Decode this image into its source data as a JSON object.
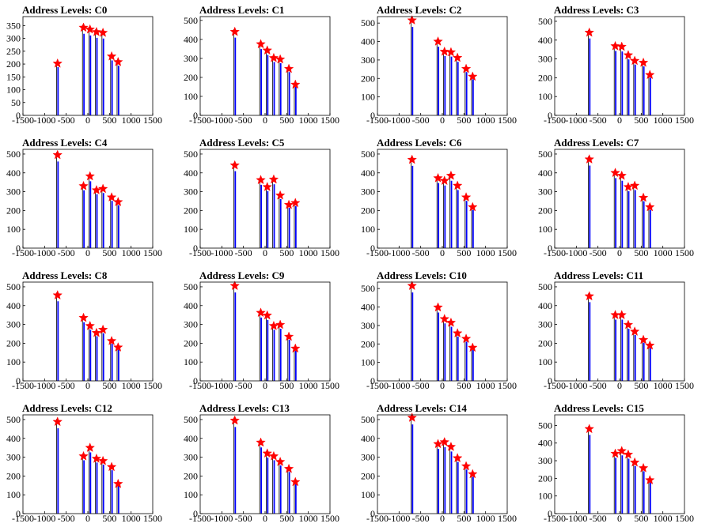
{
  "colors": {
    "histogram": "#0000ff",
    "spike": "#000000",
    "marker": "#ff0000",
    "frame": "#000000"
  },
  "chart_data": [
    {
      "type": "bar",
      "title": "Address Levels: C0",
      "xlim": [
        -1500,
        1500
      ],
      "xticks": [
        -1500,
        -1000,
        -500,
        0,
        500,
        1000,
        1500
      ],
      "ylim": [
        0,
        385
      ],
      "yticks": [
        0,
        50,
        100,
        150,
        200,
        250,
        300,
        350
      ],
      "peaks": [
        {
          "x": -700,
          "y": 202
        },
        {
          "x": -100,
          "y": 342
        },
        {
          "x": 50,
          "y": 335
        },
        {
          "x": 200,
          "y": 325
        },
        {
          "x": 350,
          "y": 322
        },
        {
          "x": 550,
          "y": 230
        },
        {
          "x": 700,
          "y": 208
        }
      ]
    },
    {
      "type": "bar",
      "title": "Address Levels: C1",
      "xlim": [
        -1500,
        1500
      ],
      "xticks": [
        -1500,
        -1000,
        -500,
        0,
        500,
        1000,
        1500
      ],
      "ylim": [
        0,
        520
      ],
      "yticks": [
        0,
        100,
        200,
        300,
        400,
        500
      ],
      "peaks": [
        {
          "x": -700,
          "y": 440
        },
        {
          "x": -100,
          "y": 375
        },
        {
          "x": 50,
          "y": 342
        },
        {
          "x": 200,
          "y": 302
        },
        {
          "x": 350,
          "y": 295
        },
        {
          "x": 550,
          "y": 245
        },
        {
          "x": 700,
          "y": 162
        }
      ]
    },
    {
      "type": "bar",
      "title": "Address Levels: C2",
      "xlim": [
        -1500,
        1500
      ],
      "xticks": [
        -1500,
        -1000,
        -500,
        0,
        500,
        1000,
        1500
      ],
      "ylim": [
        0,
        535
      ],
      "yticks": [
        0,
        100,
        200,
        300,
        400,
        500
      ],
      "peaks": [
        {
          "x": -700,
          "y": 515
        },
        {
          "x": -100,
          "y": 400
        },
        {
          "x": 50,
          "y": 345
        },
        {
          "x": 200,
          "y": 342
        },
        {
          "x": 350,
          "y": 312
        },
        {
          "x": 550,
          "y": 252
        },
        {
          "x": 700,
          "y": 210
        }
      ]
    },
    {
      "type": "bar",
      "title": "Address Levels: C3",
      "xlim": [
        -1500,
        1500
      ],
      "xticks": [
        -1500,
        -1000,
        -500,
        0,
        500,
        1000,
        1500
      ],
      "ylim": [
        0,
        525
      ],
      "yticks": [
        0,
        100,
        200,
        300,
        400,
        500
      ],
      "peaks": [
        {
          "x": -700,
          "y": 440
        },
        {
          "x": -100,
          "y": 368
        },
        {
          "x": 50,
          "y": 365
        },
        {
          "x": 200,
          "y": 320
        },
        {
          "x": 350,
          "y": 290
        },
        {
          "x": 550,
          "y": 280
        },
        {
          "x": 700,
          "y": 215
        }
      ]
    },
    {
      "type": "bar",
      "title": "Address Levels: C4",
      "xlim": [
        -1500,
        1500
      ],
      "xticks": [
        -1500,
        -1000,
        -500,
        0,
        500,
        1000,
        1500
      ],
      "ylim": [
        0,
        525
      ],
      "yticks": [
        0,
        100,
        200,
        300,
        400,
        500
      ],
      "peaks": [
        {
          "x": -700,
          "y": 495
        },
        {
          "x": -100,
          "y": 330
        },
        {
          "x": 50,
          "y": 382
        },
        {
          "x": 200,
          "y": 308
        },
        {
          "x": 350,
          "y": 315
        },
        {
          "x": 550,
          "y": 270
        },
        {
          "x": 700,
          "y": 245
        }
      ]
    },
    {
      "type": "bar",
      "title": "Address Levels: C5",
      "xlim": [
        -1500,
        1500
      ],
      "xticks": [
        -1500,
        -1000,
        -500,
        0,
        500,
        1000,
        1500
      ],
      "ylim": [
        0,
        525
      ],
      "yticks": [
        0,
        100,
        200,
        300,
        400,
        500
      ],
      "peaks": [
        {
          "x": -700,
          "y": 440
        },
        {
          "x": -100,
          "y": 362
        },
        {
          "x": 50,
          "y": 325
        },
        {
          "x": 200,
          "y": 365
        },
        {
          "x": 350,
          "y": 280
        },
        {
          "x": 550,
          "y": 230
        },
        {
          "x": 700,
          "y": 240
        }
      ]
    },
    {
      "type": "bar",
      "title": "Address Levels: C6",
      "xlim": [
        -1500,
        1500
      ],
      "xticks": [
        -1500,
        -1000,
        -500,
        0,
        500,
        1000,
        1500
      ],
      "ylim": [
        0,
        525
      ],
      "yticks": [
        0,
        100,
        200,
        300,
        400,
        500
      ],
      "peaks": [
        {
          "x": -700,
          "y": 470
        },
        {
          "x": -100,
          "y": 372
        },
        {
          "x": 50,
          "y": 358
        },
        {
          "x": 200,
          "y": 385
        },
        {
          "x": 350,
          "y": 332
        },
        {
          "x": 550,
          "y": 270
        },
        {
          "x": 700,
          "y": 218
        }
      ]
    },
    {
      "type": "bar",
      "title": "Address Levels: C7",
      "xlim": [
        -1500,
        1500
      ],
      "xticks": [
        -1500,
        -1000,
        -500,
        0,
        500,
        1000,
        1500
      ],
      "ylim": [
        0,
        525
      ],
      "yticks": [
        0,
        100,
        200,
        300,
        400,
        500
      ],
      "peaks": [
        {
          "x": -700,
          "y": 472
        },
        {
          "x": -100,
          "y": 400
        },
        {
          "x": 50,
          "y": 385
        },
        {
          "x": 200,
          "y": 325
        },
        {
          "x": 350,
          "y": 332
        },
        {
          "x": 550,
          "y": 268
        },
        {
          "x": 700,
          "y": 218
        }
      ]
    },
    {
      "type": "bar",
      "title": "Address Levels: C8",
      "xlim": [
        -1500,
        1500
      ],
      "xticks": [
        -1500,
        -1000,
        -500,
        0,
        500,
        1000,
        1500
      ],
      "ylim": [
        0,
        525
      ],
      "yticks": [
        0,
        100,
        200,
        300,
        400,
        500
      ],
      "peaks": [
        {
          "x": -700,
          "y": 455
        },
        {
          "x": -100,
          "y": 335
        },
        {
          "x": 50,
          "y": 292
        },
        {
          "x": 200,
          "y": 255
        },
        {
          "x": 350,
          "y": 272
        },
        {
          "x": 550,
          "y": 212
        },
        {
          "x": 700,
          "y": 178
        }
      ]
    },
    {
      "type": "bar",
      "title": "Address Levels: C9",
      "xlim": [
        -1500,
        1500
      ],
      "xticks": [
        -1500,
        -1000,
        -500,
        0,
        500,
        1000,
        1500
      ],
      "ylim": [
        0,
        525
      ],
      "yticks": [
        0,
        100,
        200,
        300,
        400,
        500
      ],
      "peaks": [
        {
          "x": -700,
          "y": 505
        },
        {
          "x": -100,
          "y": 362
        },
        {
          "x": 50,
          "y": 348
        },
        {
          "x": 200,
          "y": 292
        },
        {
          "x": 350,
          "y": 298
        },
        {
          "x": 550,
          "y": 235
        },
        {
          "x": 700,
          "y": 172
        }
      ]
    },
    {
      "type": "bar",
      "title": "Address Levels: C10",
      "xlim": [
        -1500,
        1500
      ],
      "xticks": [
        -1500,
        -1000,
        -500,
        0,
        500,
        1000,
        1500
      ],
      "ylim": [
        0,
        535
      ],
      "yticks": [
        0,
        100,
        200,
        300,
        400,
        500
      ],
      "peaks": [
        {
          "x": -700,
          "y": 515
        },
        {
          "x": -100,
          "y": 398
        },
        {
          "x": 50,
          "y": 335
        },
        {
          "x": 200,
          "y": 315
        },
        {
          "x": 350,
          "y": 258
        },
        {
          "x": 550,
          "y": 228
        },
        {
          "x": 700,
          "y": 180
        }
      ]
    },
    {
      "type": "bar",
      "title": "Address Levels: C11",
      "xlim": [
        -1500,
        1500
      ],
      "xticks": [
        -1500,
        -1000,
        -500,
        0,
        500,
        1000,
        1500
      ],
      "ylim": [
        0,
        525
      ],
      "yticks": [
        0,
        100,
        200,
        300,
        400,
        500
      ],
      "peaks": [
        {
          "x": -700,
          "y": 450
        },
        {
          "x": -100,
          "y": 350
        },
        {
          "x": 50,
          "y": 350
        },
        {
          "x": 200,
          "y": 298
        },
        {
          "x": 350,
          "y": 262
        },
        {
          "x": 550,
          "y": 218
        },
        {
          "x": 700,
          "y": 188
        }
      ]
    },
    {
      "type": "bar",
      "title": "Address Levels: C12",
      "xlim": [
        -1500,
        1500
      ],
      "xticks": [
        -1500,
        -1000,
        -500,
        0,
        500,
        1000,
        1500
      ],
      "ylim": [
        0,
        525
      ],
      "yticks": [
        0,
        100,
        200,
        300,
        400,
        500
      ],
      "peaks": [
        {
          "x": -700,
          "y": 488
        },
        {
          "x": -100,
          "y": 305
        },
        {
          "x": 50,
          "y": 350
        },
        {
          "x": 200,
          "y": 292
        },
        {
          "x": 350,
          "y": 280
        },
        {
          "x": 550,
          "y": 248
        },
        {
          "x": 700,
          "y": 158
        }
      ]
    },
    {
      "type": "bar",
      "title": "Address Levels: C13",
      "xlim": [
        -1500,
        1500
      ],
      "xticks": [
        -1500,
        -1000,
        -500,
        0,
        500,
        1000,
        1500
      ],
      "ylim": [
        0,
        525
      ],
      "yticks": [
        0,
        100,
        200,
        300,
        400,
        500
      ],
      "peaks": [
        {
          "x": -700,
          "y": 495
        },
        {
          "x": -100,
          "y": 378
        },
        {
          "x": 50,
          "y": 320
        },
        {
          "x": 200,
          "y": 305
        },
        {
          "x": 350,
          "y": 275
        },
        {
          "x": 550,
          "y": 238
        },
        {
          "x": 700,
          "y": 168
        }
      ]
    },
    {
      "type": "bar",
      "title": "Address Levels: C14",
      "xlim": [
        -1500,
        1500
      ],
      "xticks": [
        -1500,
        -1000,
        -500,
        0,
        500,
        1000,
        1500
      ],
      "ylim": [
        0,
        525
      ],
      "yticks": [
        0,
        100,
        200,
        300,
        400,
        500
      ],
      "peaks": [
        {
          "x": -700,
          "y": 510
        },
        {
          "x": -100,
          "y": 370
        },
        {
          "x": 50,
          "y": 380
        },
        {
          "x": 200,
          "y": 355
        },
        {
          "x": 350,
          "y": 295
        },
        {
          "x": 550,
          "y": 252
        },
        {
          "x": 700,
          "y": 210
        }
      ]
    },
    {
      "type": "bar",
      "title": "Address Levels: C15",
      "xlim": [
        -1500,
        1500
      ],
      "xticks": [
        -1500,
        -1000,
        -500,
        0,
        500,
        1000,
        1500
      ],
      "ylim": [
        0,
        560
      ],
      "yticks": [
        0,
        100,
        200,
        300,
        400,
        500
      ],
      "peaks": [
        {
          "x": -700,
          "y": 480
        },
        {
          "x": -100,
          "y": 340
        },
        {
          "x": 50,
          "y": 355
        },
        {
          "x": 200,
          "y": 335
        },
        {
          "x": 350,
          "y": 290
        },
        {
          "x": 550,
          "y": 258
        },
        {
          "x": 700,
          "y": 190
        }
      ]
    }
  ]
}
